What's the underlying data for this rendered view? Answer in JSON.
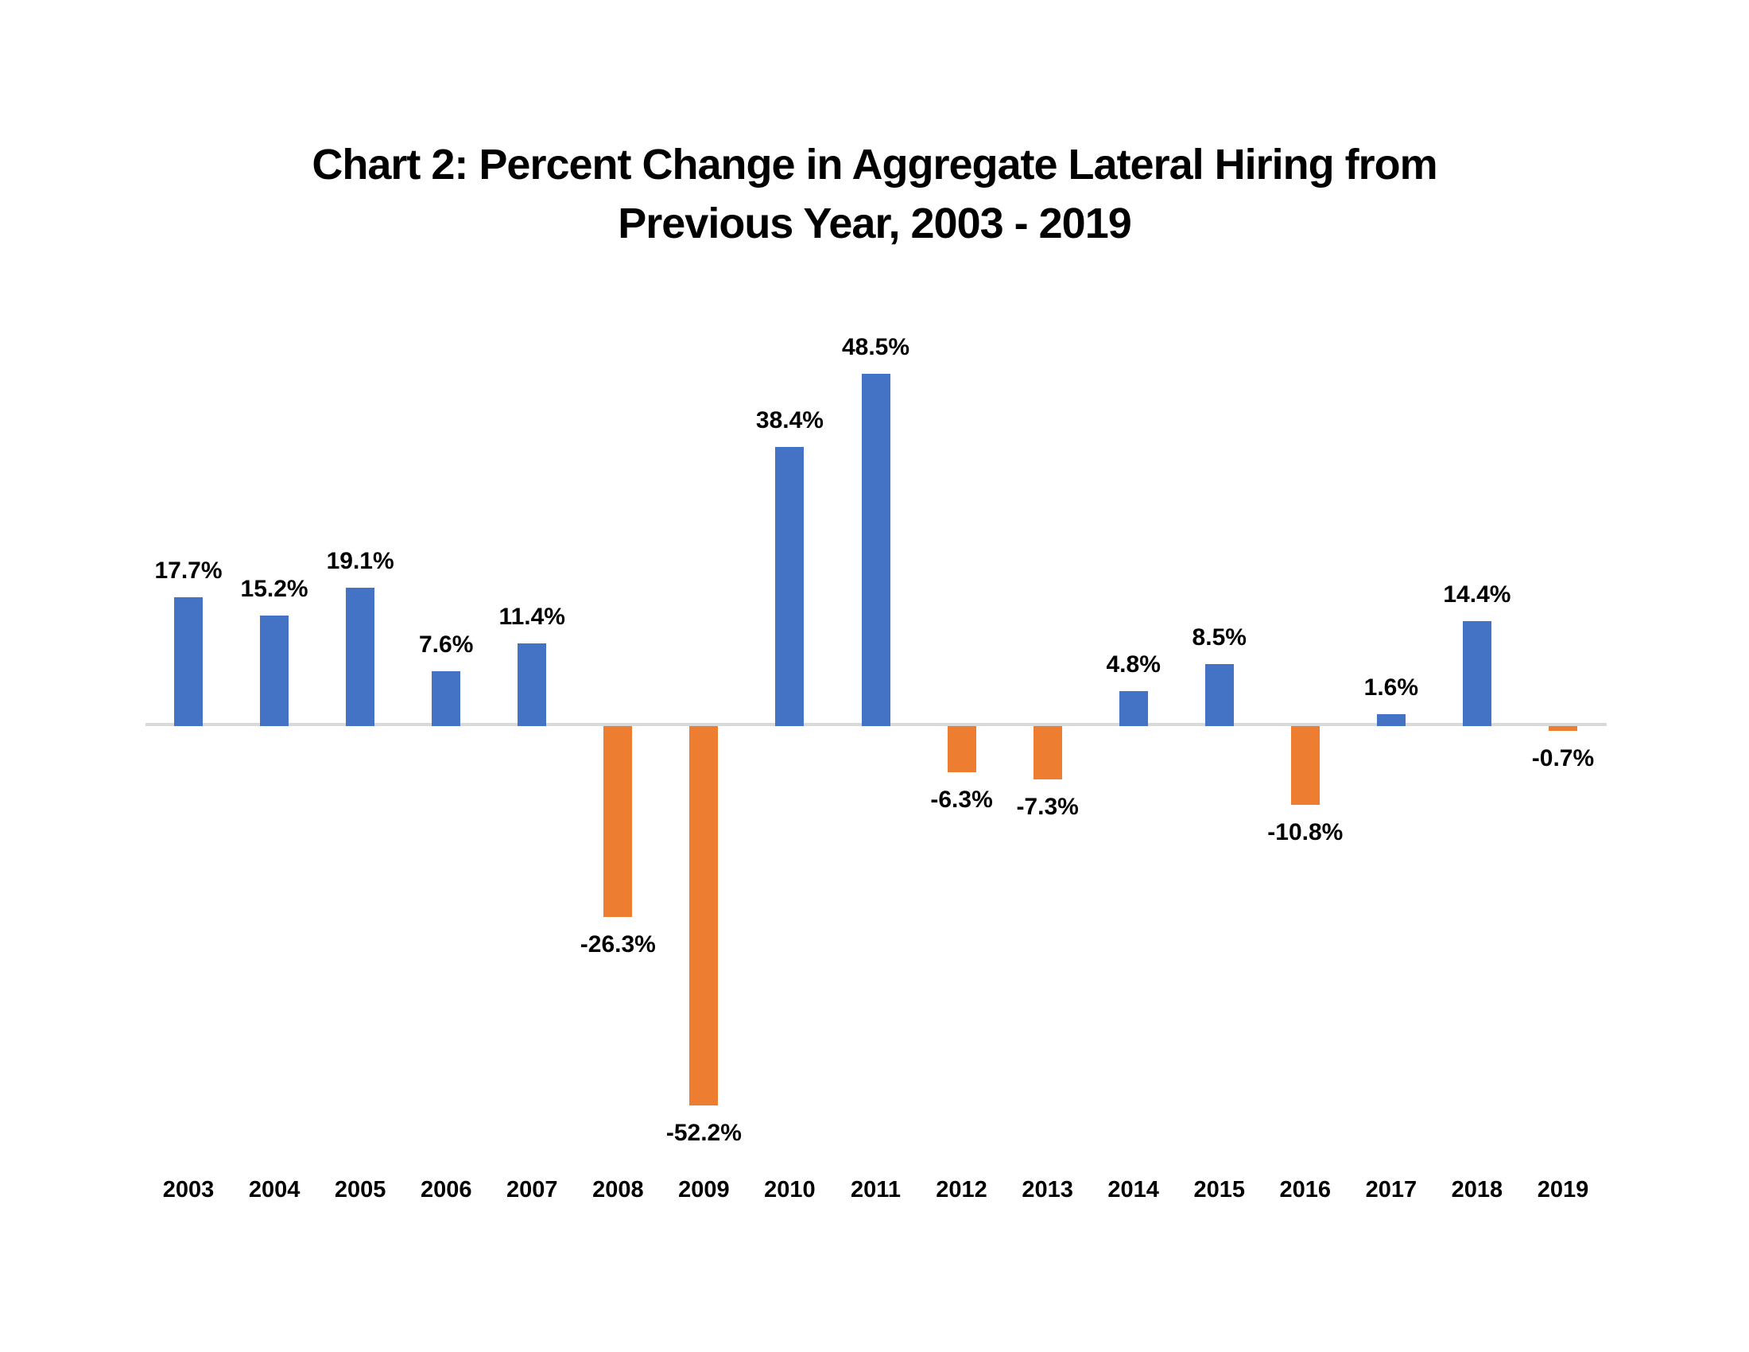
{
  "title": {
    "line1": "Chart 2: Percent Change in Aggregate Lateral Hiring from",
    "line2": "Previous Year, 2003 - 2019"
  },
  "chart_data": {
    "type": "bar",
    "title": "Chart 2: Percent Change in Aggregate Lateral Hiring from Previous Year, 2003 - 2019",
    "xlabel": "",
    "ylabel": "",
    "unit": "percent",
    "ylim": [
      -60,
      55
    ],
    "grid": false,
    "legend": false,
    "value_axis_hidden": true,
    "colors": {
      "positive_bar": "#4472C4",
      "negative_bar": "#ED7D31",
      "axis_line": "#D9D9D9",
      "label_text": "#000000"
    },
    "categories": [
      "2003",
      "2004",
      "2005",
      "2006",
      "2007",
      "2008",
      "2009",
      "2010",
      "2011",
      "2012",
      "2013",
      "2014",
      "2015",
      "2016",
      "2017",
      "2018",
      "2019"
    ],
    "values": [
      17.7,
      15.2,
      19.1,
      7.6,
      11.4,
      -26.3,
      -52.2,
      38.4,
      48.5,
      -6.3,
      -7.3,
      4.8,
      8.5,
      -10.8,
      1.6,
      14.4,
      -0.7
    ],
    "labels": [
      "17.7%",
      "15.2%",
      "19.1%",
      "7.6%",
      "11.4%",
      "-26.3%",
      "-52.2%",
      "38.4%",
      "48.5%",
      "-6.3%",
      "-7.3%",
      "4.8%",
      "8.5%",
      "-10.8%",
      "1.6%",
      "14.4%",
      "-0.7%"
    ]
  }
}
